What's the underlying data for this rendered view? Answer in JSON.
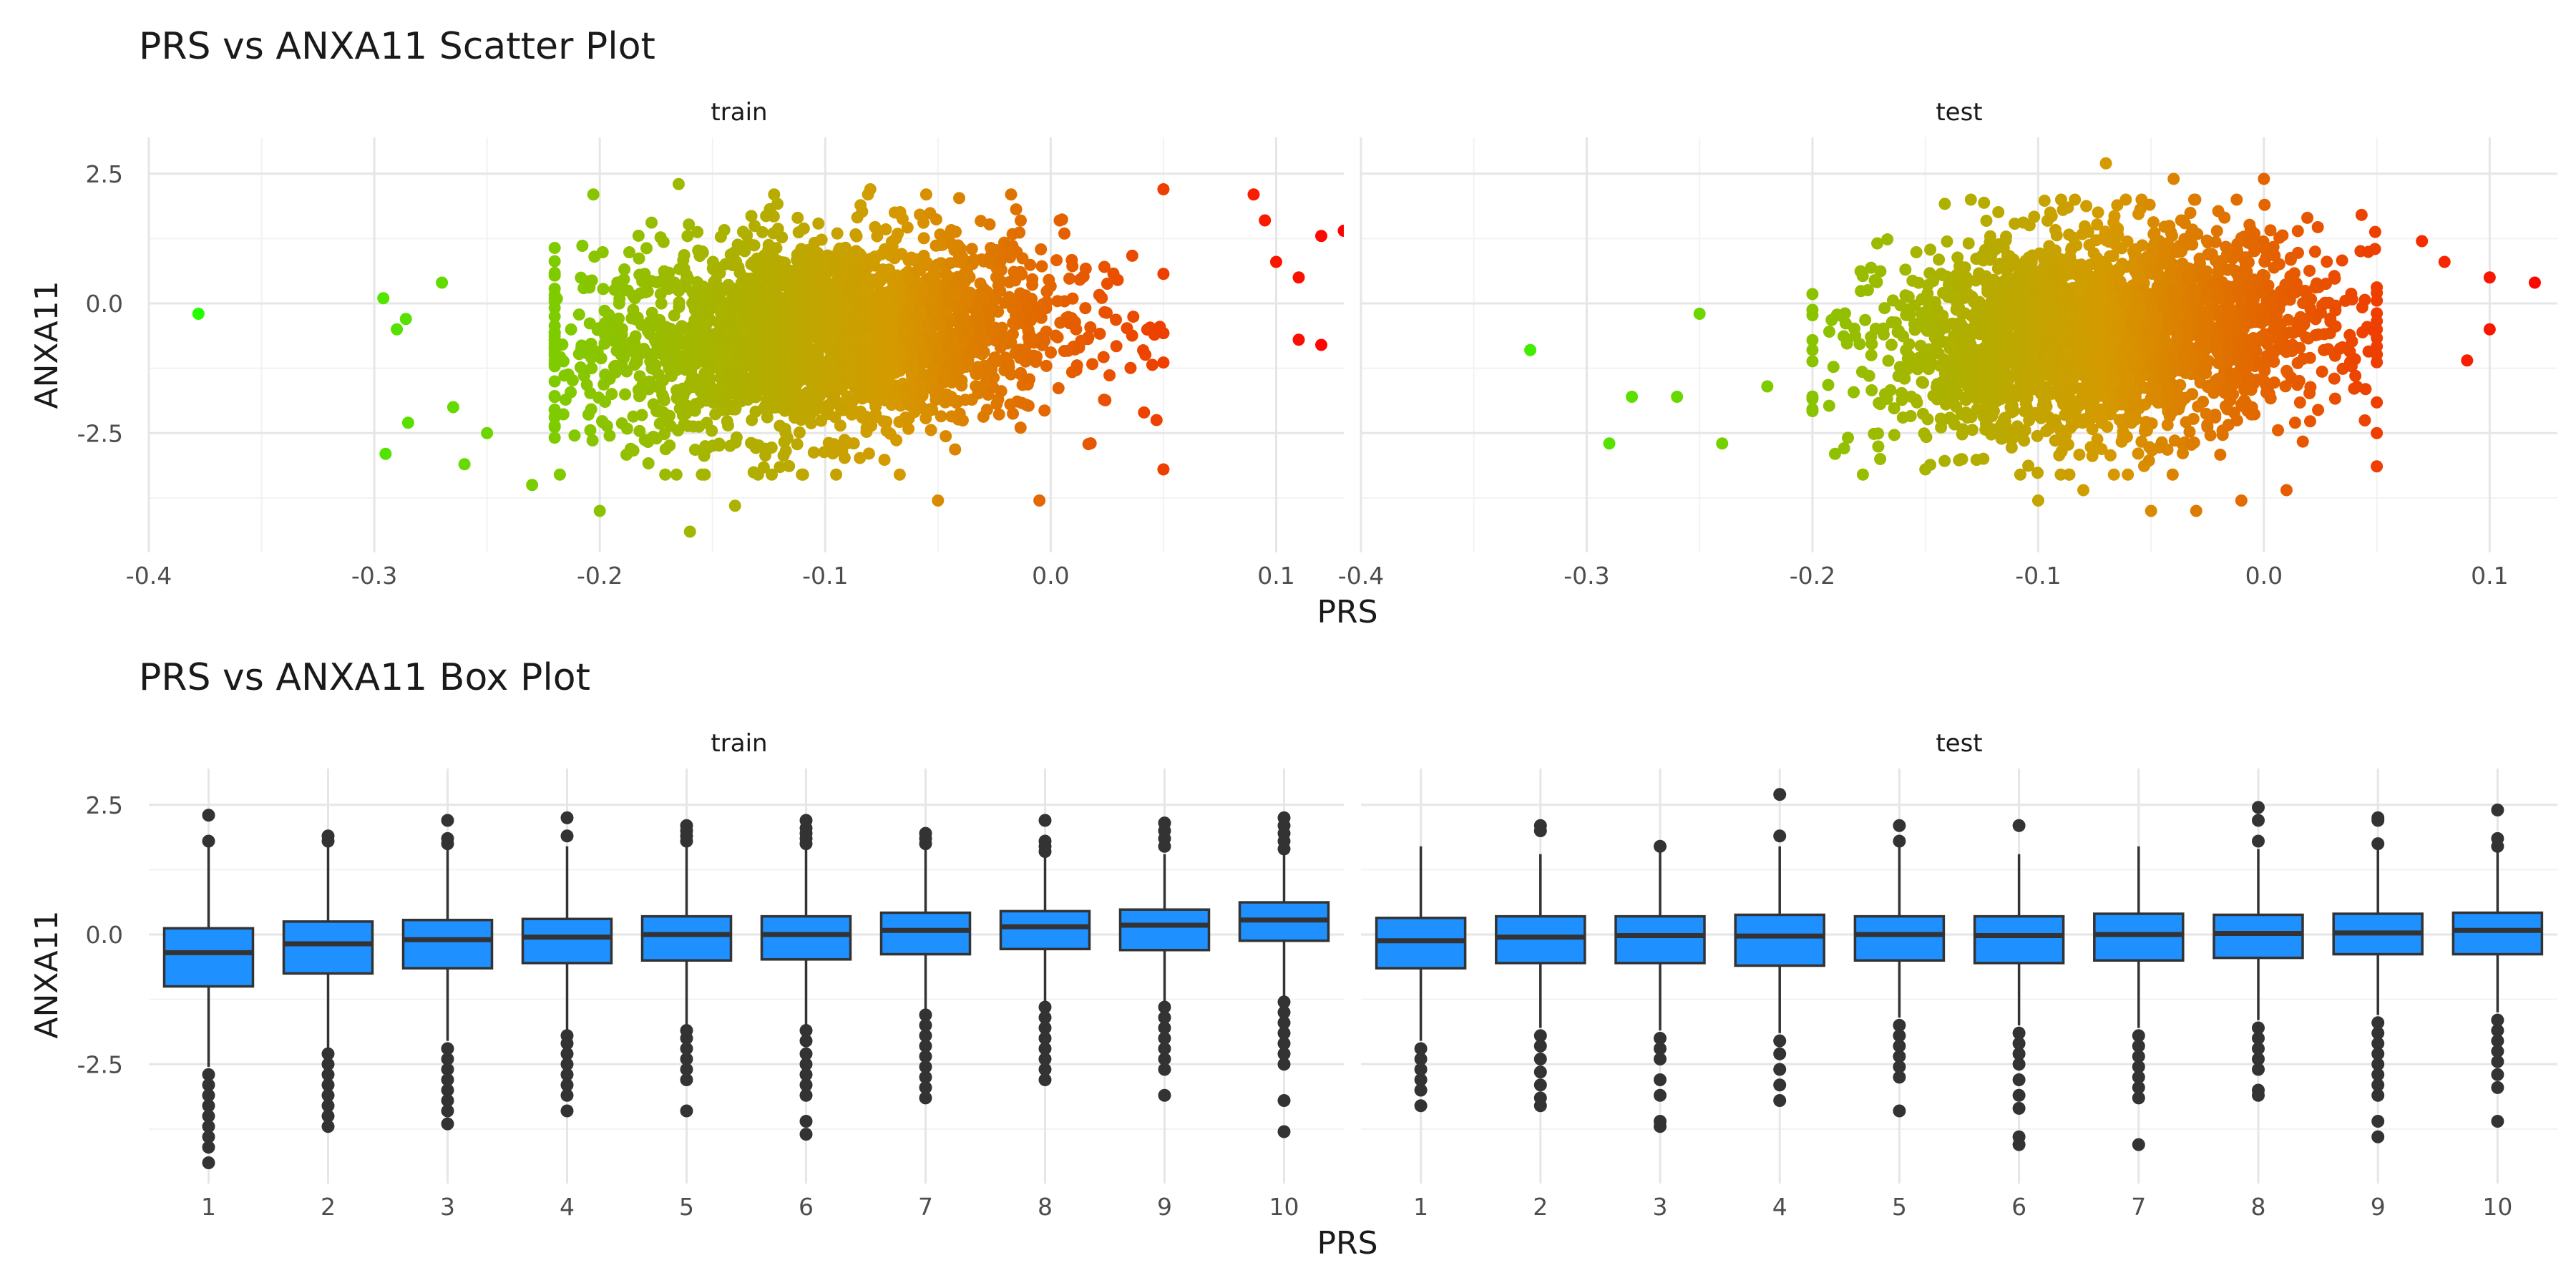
{
  "chart_data": [
    {
      "type": "scatter",
      "title": "PRS vs ANXA11 Scatter Plot",
      "xlabel": "PRS",
      "ylabel": "ANXA11",
      "xlim": [
        -0.4,
        0.13
      ],
      "ylim": [
        -4.8,
        3.2
      ],
      "x_ticks": [
        "-0.4",
        "-0.3",
        "-0.2",
        "-0.1",
        "0.0",
        "0.1"
      ],
      "y_ticks": [
        "2.5",
        "0.0",
        "-2.5"
      ],
      "color_scale": {
        "low": "#22ff00",
        "mid": "#d59a00",
        "high": "#ff0000"
      },
      "panels": [
        {
          "name": "train",
          "bulk": {
            "x_range": [
              -0.22,
              0.05
            ],
            "x_center": -0.1,
            "y_range": [
              -3.3,
              2.1
            ],
            "y_center": -0.6
          },
          "points": [
            [
              -0.378,
              -0.2
            ],
            [
              -0.296,
              0.1
            ],
            [
              -0.295,
              -2.9
            ],
            [
              -0.29,
              -0.5
            ],
            [
              -0.286,
              -0.3
            ],
            [
              -0.285,
              -2.3
            ],
            [
              -0.27,
              0.4
            ],
            [
              -0.265,
              -2.0
            ],
            [
              -0.26,
              -3.1
            ],
            [
              -0.25,
              -2.5
            ],
            [
              -0.23,
              -3.5
            ],
            [
              -0.2,
              -4.0
            ],
            [
              -0.165,
              2.3
            ],
            [
              -0.16,
              -4.4
            ],
            [
              -0.14,
              -3.9
            ],
            [
              -0.08,
              2.2
            ],
            [
              -0.05,
              -3.8
            ],
            [
              -0.005,
              -3.8
            ],
            [
              0.05,
              -3.2
            ],
            [
              0.05,
              2.2
            ],
            [
              0.09,
              2.1
            ],
            [
              0.095,
              1.6
            ],
            [
              0.1,
              0.8
            ],
            [
              0.11,
              0.5
            ],
            [
              0.11,
              -0.7
            ],
            [
              0.12,
              1.3
            ],
            [
              0.12,
              -0.8
            ],
            [
              0.13,
              1.4
            ]
          ]
        },
        {
          "name": "test",
          "bulk": {
            "x_range": [
              -0.2,
              0.05
            ],
            "x_center": -0.07,
            "y_range": [
              -3.3,
              2.0
            ],
            "y_center": -0.6
          },
          "points": [
            [
              -0.325,
              -0.9
            ],
            [
              -0.29,
              -2.7
            ],
            [
              -0.28,
              -1.8
            ],
            [
              -0.26,
              -1.8
            ],
            [
              -0.25,
              -0.2
            ],
            [
              -0.24,
              -2.7
            ],
            [
              -0.22,
              -1.6
            ],
            [
              -0.19,
              -2.9
            ],
            [
              -0.17,
              -3.0
            ],
            [
              -0.15,
              -3.2
            ],
            [
              -0.1,
              -3.8
            ],
            [
              -0.08,
              -3.6
            ],
            [
              -0.07,
              2.7
            ],
            [
              -0.05,
              -4.0
            ],
            [
              -0.04,
              2.4
            ],
            [
              -0.03,
              -4.0
            ],
            [
              -0.01,
              -3.8
            ],
            [
              0.0,
              2.4
            ],
            [
              0.01,
              -3.6
            ],
            [
              0.05,
              -2.5
            ],
            [
              0.07,
              1.2
            ],
            [
              0.08,
              0.8
            ],
            [
              0.09,
              -1.1
            ],
            [
              0.1,
              0.5
            ],
            [
              0.1,
              -0.5
            ],
            [
              0.12,
              0.4
            ]
          ]
        }
      ]
    },
    {
      "type": "box",
      "title": "PRS vs ANXA11 Box Plot",
      "xlabel": "PRS",
      "ylabel": "ANXA11",
      "ylim": [
        -4.8,
        3.2
      ],
      "y_ticks": [
        "2.5",
        "0.0",
        "-2.5"
      ],
      "categories": [
        "1",
        "2",
        "3",
        "4",
        "5",
        "6",
        "7",
        "8",
        "9",
        "10"
      ],
      "box_color": "#1e90ff",
      "panels": [
        {
          "name": "train",
          "boxes": [
            {
              "q1": -1.0,
              "median": -0.35,
              "q3": 0.12,
              "wlow": -2.55,
              "whigh": 1.7,
              "out_low": [
                -2.7,
                -2.9,
                -3.1,
                -3.3,
                -3.5,
                -3.7,
                -3.9,
                -4.1,
                -4.4
              ],
              "out_high": [
                1.8,
                2.3
              ]
            },
            {
              "q1": -0.75,
              "median": -0.18,
              "q3": 0.25,
              "wlow": -2.2,
              "whigh": 1.7,
              "out_low": [
                -2.3,
                -2.5,
                -2.7,
                -2.9,
                -3.1,
                -3.3,
                -3.5,
                -3.7
              ],
              "out_high": [
                1.8,
                1.9
              ]
            },
            {
              "q1": -0.65,
              "median": -0.1,
              "q3": 0.28,
              "wlow": -2.05,
              "whigh": 1.65,
              "out_low": [
                -2.2,
                -2.4,
                -2.6,
                -2.8,
                -3.0,
                -3.2,
                -3.4,
                -3.65
              ],
              "out_high": [
                1.75,
                1.85,
                2.2
              ]
            },
            {
              "q1": -0.55,
              "median": -0.05,
              "q3": 0.3,
              "wlow": -1.85,
              "whigh": 1.7,
              "out_low": [
                -1.95,
                -2.1,
                -2.3,
                -2.5,
                -2.7,
                -2.9,
                -3.1,
                -3.4
              ],
              "out_high": [
                1.9,
                2.25
              ]
            },
            {
              "q1": -0.5,
              "median": 0.0,
              "q3": 0.35,
              "wlow": -1.75,
              "whigh": 1.7,
              "out_low": [
                -1.85,
                -2.0,
                -2.2,
                -2.4,
                -2.6,
                -2.8,
                -3.4
              ],
              "out_high": [
                1.8,
                1.9,
                2.0,
                2.1
              ]
            },
            {
              "q1": -0.48,
              "median": 0.0,
              "q3": 0.35,
              "wlow": -1.75,
              "whigh": 1.65,
              "out_low": [
                -1.85,
                -2.05,
                -2.3,
                -2.5,
                -2.7,
                -2.9,
                -3.1,
                -3.6,
                -3.85
              ],
              "out_high": [
                1.75,
                1.85,
                1.95,
                2.05,
                2.2
              ]
            },
            {
              "q1": -0.38,
              "median": 0.08,
              "q3": 0.42,
              "wlow": -1.45,
              "whigh": 1.65,
              "out_low": [
                -1.55,
                -1.75,
                -1.95,
                -2.15,
                -2.35,
                -2.55,
                -2.75,
                -2.95,
                -3.15
              ],
              "out_high": [
                1.75,
                1.85,
                1.95
              ]
            },
            {
              "q1": -0.28,
              "median": 0.15,
              "q3": 0.45,
              "wlow": -1.3,
              "whigh": 1.5,
              "out_low": [
                -1.4,
                -1.6,
                -1.8,
                -2.0,
                -2.2,
                -2.4,
                -2.6,
                -2.8
              ],
              "out_high": [
                1.6,
                1.7,
                1.8,
                2.2
              ]
            },
            {
              "q1": -0.3,
              "median": 0.18,
              "q3": 0.48,
              "wlow": -1.3,
              "whigh": 1.55,
              "out_low": [
                -1.4,
                -1.6,
                -1.8,
                -2.0,
                -2.2,
                -2.4,
                -2.6,
                -3.1
              ],
              "out_high": [
                1.7,
                1.85,
                2.0,
                2.15
              ]
            },
            {
              "q1": -0.12,
              "median": 0.28,
              "q3": 0.62,
              "wlow": -1.2,
              "whigh": 1.55,
              "out_low": [
                -1.3,
                -1.5,
                -1.7,
                -1.9,
                -2.1,
                -2.3,
                -2.5,
                -3.2,
                -3.8
              ],
              "out_high": [
                1.65,
                1.8,
                1.95,
                2.1,
                2.25
              ]
            }
          ]
        },
        {
          "name": "test",
          "boxes": [
            {
              "q1": -0.65,
              "median": -0.12,
              "q3": 0.32,
              "wlow": -2.05,
              "whigh": 1.7,
              "out_low": [
                -2.2,
                -2.4,
                -2.6,
                -2.8,
                -3.0,
                -3.3
              ],
              "out_high": []
            },
            {
              "q1": -0.55,
              "median": -0.05,
              "q3": 0.35,
              "wlow": -1.8,
              "whigh": 1.55,
              "out_low": [
                -1.95,
                -2.15,
                -2.4,
                -2.65,
                -2.9,
                -3.15,
                -3.3
              ],
              "out_high": [
                2.0,
                2.1
              ]
            },
            {
              "q1": -0.55,
              "median": -0.02,
              "q3": 0.35,
              "wlow": -1.85,
              "whigh": 1.6,
              "out_low": [
                -2.0,
                -2.2,
                -2.4,
                -2.8,
                -3.1,
                -3.6,
                -3.7
              ],
              "out_high": [
                1.7
              ]
            },
            {
              "q1": -0.6,
              "median": -0.03,
              "q3": 0.38,
              "wlow": -1.9,
              "whigh": 1.7,
              "out_low": [
                -2.05,
                -2.3,
                -2.6,
                -2.9,
                -3.2
              ],
              "out_high": [
                1.9,
                2.7
              ]
            },
            {
              "q1": -0.5,
              "median": 0.0,
              "q3": 0.35,
              "wlow": -1.6,
              "whigh": 1.7,
              "out_low": [
                -1.75,
                -1.95,
                -2.15,
                -2.35,
                -2.55,
                -2.75,
                -3.4
              ],
              "out_high": [
                1.8,
                2.1
              ]
            },
            {
              "q1": -0.55,
              "median": -0.02,
              "q3": 0.35,
              "wlow": -1.75,
              "whigh": 1.55,
              "out_low": [
                -1.9,
                -2.1,
                -2.3,
                -2.5,
                -2.8,
                -3.1,
                -3.35,
                -3.9,
                -4.05
              ],
              "out_high": [
                2.1
              ]
            },
            {
              "q1": -0.5,
              "median": 0.0,
              "q3": 0.4,
              "wlow": -1.8,
              "whigh": 1.7,
              "out_low": [
                -1.95,
                -2.15,
                -2.35,
                -2.55,
                -2.75,
                -2.95,
                -3.15,
                -4.05
              ],
              "out_high": []
            },
            {
              "q1": -0.45,
              "median": 0.02,
              "q3": 0.38,
              "wlow": -1.65,
              "whigh": 1.65,
              "out_low": [
                -1.8,
                -2.0,
                -2.2,
                -2.4,
                -2.6,
                -3.0,
                -3.1
              ],
              "out_high": [
                1.8,
                2.2,
                2.45
              ]
            },
            {
              "q1": -0.38,
              "median": 0.03,
              "q3": 0.4,
              "wlow": -1.55,
              "whigh": 1.65,
              "out_low": [
                -1.7,
                -1.9,
                -2.1,
                -2.3,
                -2.5,
                -2.7,
                -2.9,
                -3.1,
                -3.6,
                -3.9
              ],
              "out_high": [
                1.75,
                2.2,
                2.25
              ]
            },
            {
              "q1": -0.38,
              "median": 0.08,
              "q3": 0.42,
              "wlow": -1.5,
              "whigh": 1.6,
              "out_low": [
                -1.65,
                -1.85,
                -2.05,
                -2.25,
                -2.45,
                -2.7,
                -2.95,
                -3.6
              ],
              "out_high": [
                1.7,
                1.85,
                2.4
              ]
            }
          ]
        }
      ]
    }
  ]
}
